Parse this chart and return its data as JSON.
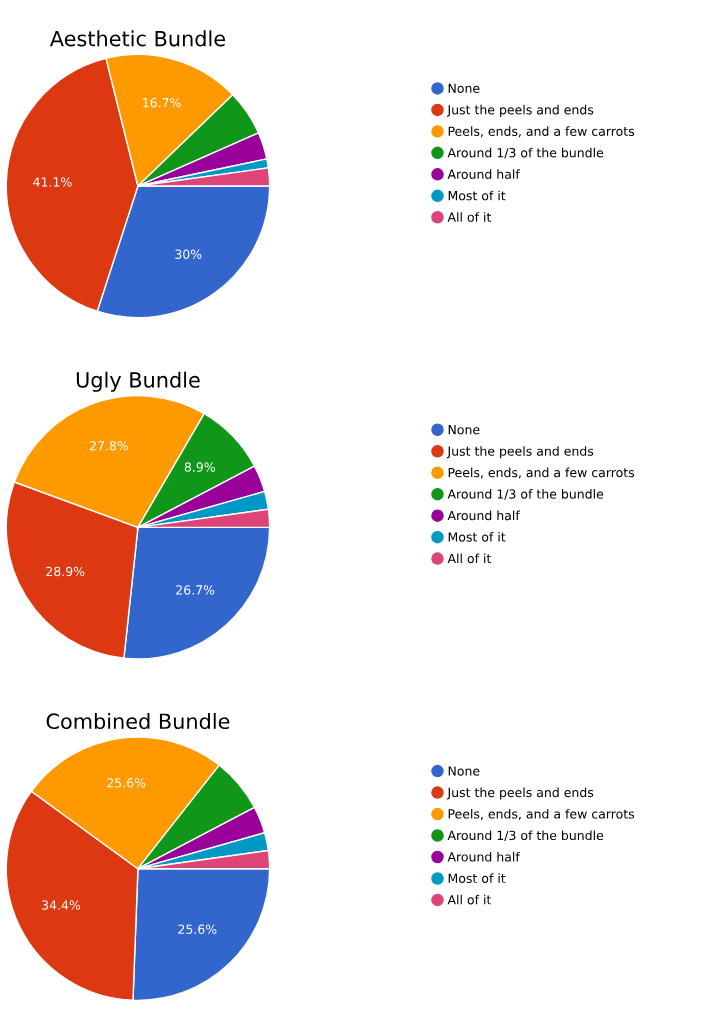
{
  "chart_data": [
    {
      "type": "pie",
      "title": "Aesthetic Bundle",
      "legend": "right",
      "categories": [
        "None",
        "Just the peels and ends",
        "Peels, ends, and a few carrots",
        "Around 1/3 of the bundle",
        "Around half",
        "Most of it",
        "All of it"
      ],
      "values": [
        30,
        41.1,
        16.7,
        5.6,
        3.3,
        1.1,
        2.2
      ],
      "value_labels": [
        "30%",
        "41.1%",
        "16.7%",
        null,
        null,
        null,
        null
      ],
      "colors": [
        "#3366cc",
        "#dc3912",
        "#ff9900",
        "#109618",
        "#990099",
        "#0099c6",
        "#dd4477"
      ]
    },
    {
      "type": "pie",
      "title": "Ugly Bundle",
      "legend": "right",
      "categories": [
        "None",
        "Just the peels and ends",
        "Peels, ends, and a few carrots",
        "Around 1/3 of the bundle",
        "Around half",
        "Most of it",
        "All of it"
      ],
      "values": [
        26.7,
        28.9,
        27.8,
        8.9,
        3.3,
        2.2,
        2.2
      ],
      "value_labels": [
        "26.7%",
        "28.9%",
        "27.8%",
        "8.9%",
        null,
        null,
        null
      ],
      "colors": [
        "#3366cc",
        "#dc3912",
        "#ff9900",
        "#109618",
        "#990099",
        "#0099c6",
        "#dd4477"
      ]
    },
    {
      "type": "pie",
      "title": "Combined Bundle",
      "legend": "right",
      "categories": [
        "None",
        "Just the peels and ends",
        "Peels, ends, and a few carrots",
        "Around 1/3 of the bundle",
        "Around half",
        "Most of it",
        "All of it"
      ],
      "values": [
        25.6,
        34.4,
        25.6,
        6.7,
        3.3,
        2.2,
        2.2
      ],
      "value_labels": [
        "25.6%",
        "34.4%",
        "25.6%",
        null,
        null,
        null,
        null
      ],
      "colors": [
        "#3366cc",
        "#dc3912",
        "#ff9900",
        "#109618",
        "#990099",
        "#0099c6",
        "#dd4477"
      ]
    }
  ]
}
